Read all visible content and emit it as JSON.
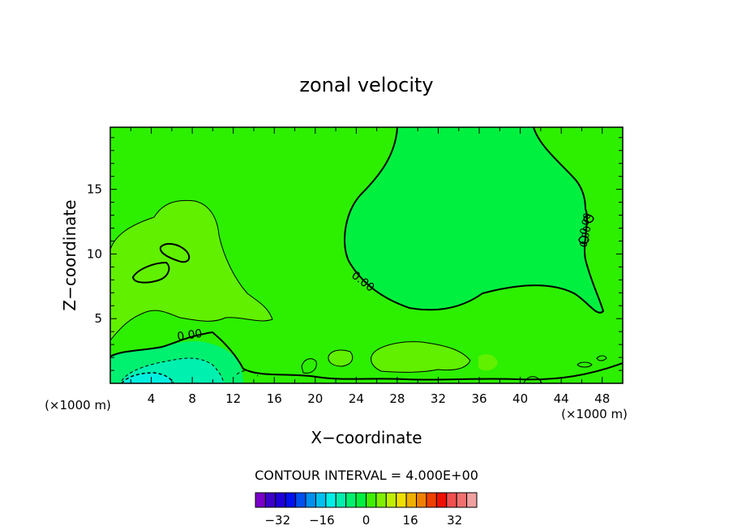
{
  "chart_data": {
    "type": "heatmap",
    "title": "zonal velocity",
    "xlabel": "X−coordinate",
    "ylabel": "Z−coordinate",
    "x_unit_left": "(×1000 m)",
    "x_unit_right": "(×1000 m)",
    "x_ticks": [
      "4",
      "8",
      "12",
      "16",
      "20",
      "24",
      "28",
      "32",
      "36",
      "40",
      "44",
      "48"
    ],
    "y_ticks": [
      "5",
      "10",
      "15"
    ],
    "xlim": [
      0,
      50
    ],
    "ylim": [
      0,
      19.8
    ],
    "grid": false,
    "contour_interval_text": "CONTOUR INTERVAL = 4.000E+00",
    "contour_labels": [
      "0.00",
      "0.00",
      "0.00",
      "0.00"
    ],
    "colorbar": {
      "colors": [
        "#7a00c8",
        "#3c00c8",
        "#1e00d8",
        "#0010f0",
        "#0050f0",
        "#0090f0",
        "#00c0f0",
        "#00f0e8",
        "#00f0b0",
        "#00f070",
        "#00f040",
        "#40f000",
        "#80f000",
        "#c0f000",
        "#f0e000",
        "#f0b000",
        "#f08000",
        "#f04000",
        "#f01000",
        "#f05050",
        "#f07070",
        "#f0a0a0"
      ],
      "tick_labels": [
        "−32",
        "−16",
        "0",
        "16",
        "32"
      ],
      "tick_values": [
        -32,
        -16,
        0,
        16,
        32
      ],
      "min": -40,
      "max": 40
    },
    "fill_colors": {
      "background": "#2cf000",
      "level_0_4": "#00f040",
      "level_4_8": "#60f000",
      "level_neg4_0": "#00f070",
      "level_neg8_neg4": "#00f0b0",
      "level_neg12_neg8": "#00f0e0"
    }
  }
}
